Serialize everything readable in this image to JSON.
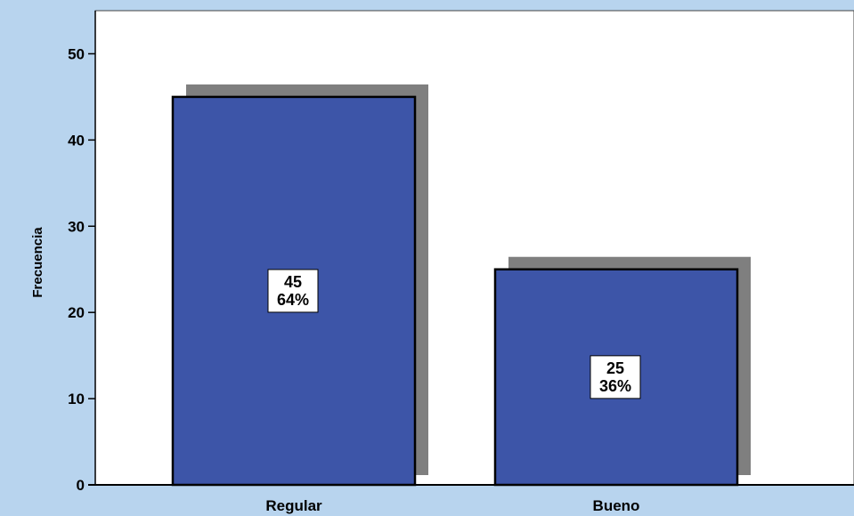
{
  "chart_data": {
    "type": "bar",
    "categories": [
      "Regular",
      "Bueno"
    ],
    "values": [
      45,
      25
    ],
    "percent_labels": [
      "64%",
      "36%"
    ],
    "title": "",
    "xlabel": "",
    "ylabel": "Frecuencia",
    "ylim": [
      0,
      55
    ],
    "yticks": [
      0,
      10,
      20,
      30,
      40,
      50
    ],
    "grid": false,
    "colors": {
      "bar_fill": "#3d55a8",
      "bar_shadow": "#7f7f7f",
      "plot_background": "#ffffff",
      "outer_background": "#b8d4ee"
    }
  }
}
